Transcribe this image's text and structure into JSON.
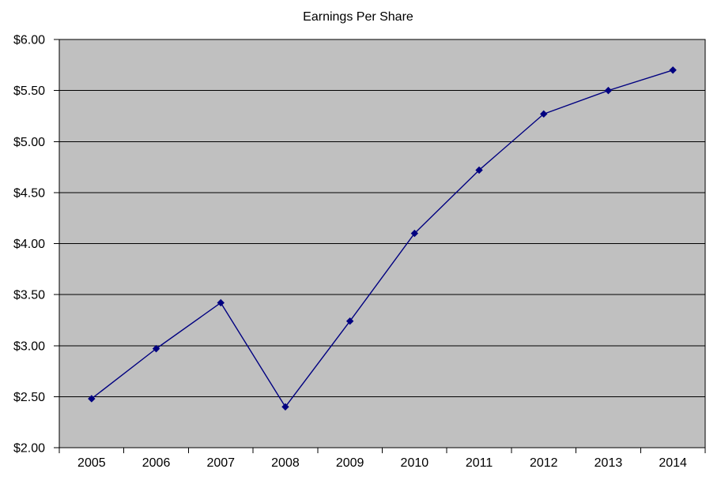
{
  "window": {
    "background_color": "#ffffff"
  },
  "chart_data": {
    "type": "line",
    "title": "Earnings Per Share",
    "categories": [
      "2005",
      "2006",
      "2007",
      "2008",
      "2009",
      "2010",
      "2011",
      "2012",
      "2013",
      "2014"
    ],
    "series": [
      {
        "name": "Earnings Per Share",
        "values": [
          2.48,
          2.97,
          3.42,
          2.4,
          3.24,
          4.1,
          4.72,
          5.27,
          5.5,
          5.7
        ],
        "color": "#000080",
        "marker": "diamond"
      }
    ],
    "xlabel": "",
    "ylabel": "",
    "ylim": [
      2.0,
      6.0
    ],
    "ytick_step": 0.5,
    "ytick_labels": [
      "$2.00",
      "$2.50",
      "$3.00",
      "$3.50",
      "$4.00",
      "$4.50",
      "$5.00",
      "$5.50",
      "$6.00"
    ],
    "grid": true,
    "legend_position": "none",
    "plot_background_color": "#c0c0c0",
    "gridline_color": "#000000",
    "axis_color": "#000000",
    "text_color": "#000000"
  }
}
